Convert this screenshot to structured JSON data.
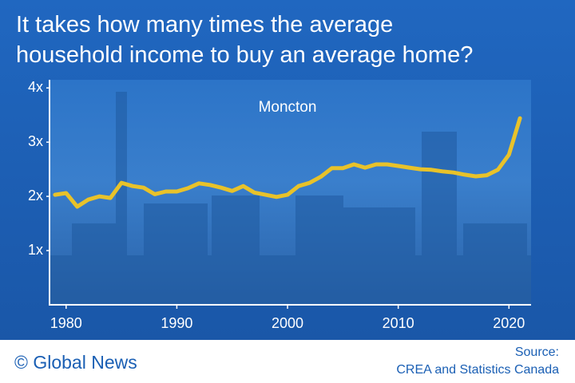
{
  "chart_data": {
    "type": "line",
    "title": "It takes how many times the average household income to buy an average home?",
    "annotation": "Moncton",
    "brand": "© Global News",
    "source_label": "Source:",
    "source": "CREA and Statistics Canada",
    "x": [
      1979,
      1980,
      1981,
      1982,
      1983,
      1984,
      1985,
      1986,
      1987,
      1988,
      1989,
      1990,
      1991,
      1992,
      1993,
      1994,
      1995,
      1996,
      1997,
      1998,
      1999,
      2000,
      2001,
      2002,
      2003,
      2004,
      2005,
      2006,
      2007,
      2008,
      2009,
      2010,
      2011,
      2012,
      2013,
      2014,
      2015,
      2016,
      2017,
      2018,
      2019,
      2020,
      2021
    ],
    "series": [
      {
        "color": "#e8c22a",
        "values": [
          2.03,
          2.06,
          1.81,
          1.94,
          2.0,
          1.97,
          2.25,
          2.19,
          2.16,
          2.04,
          2.09,
          2.09,
          2.15,
          2.24,
          2.21,
          2.16,
          2.1,
          2.19,
          2.07,
          2.03,
          1.99,
          2.03,
          2.19,
          2.25,
          2.36,
          2.52,
          2.52,
          2.59,
          2.53,
          2.59,
          2.59,
          2.56,
          2.53,
          2.5,
          2.49,
          2.46,
          2.44,
          2.4,
          2.37,
          2.39,
          2.49,
          2.77,
          3.44
        ]
      }
    ],
    "xlim": [
      1978.5,
      2022
    ],
    "xticks": [
      1980,
      1990,
      2000,
      2010,
      2020
    ],
    "ylim": [
      0,
      4.15
    ],
    "yticks": [
      {
        "value": 1,
        "label": "1x"
      },
      {
        "value": 2,
        "label": "2x"
      },
      {
        "value": 3,
        "label": "3x"
      },
      {
        "value": 4,
        "label": "4x"
      }
    ]
  }
}
